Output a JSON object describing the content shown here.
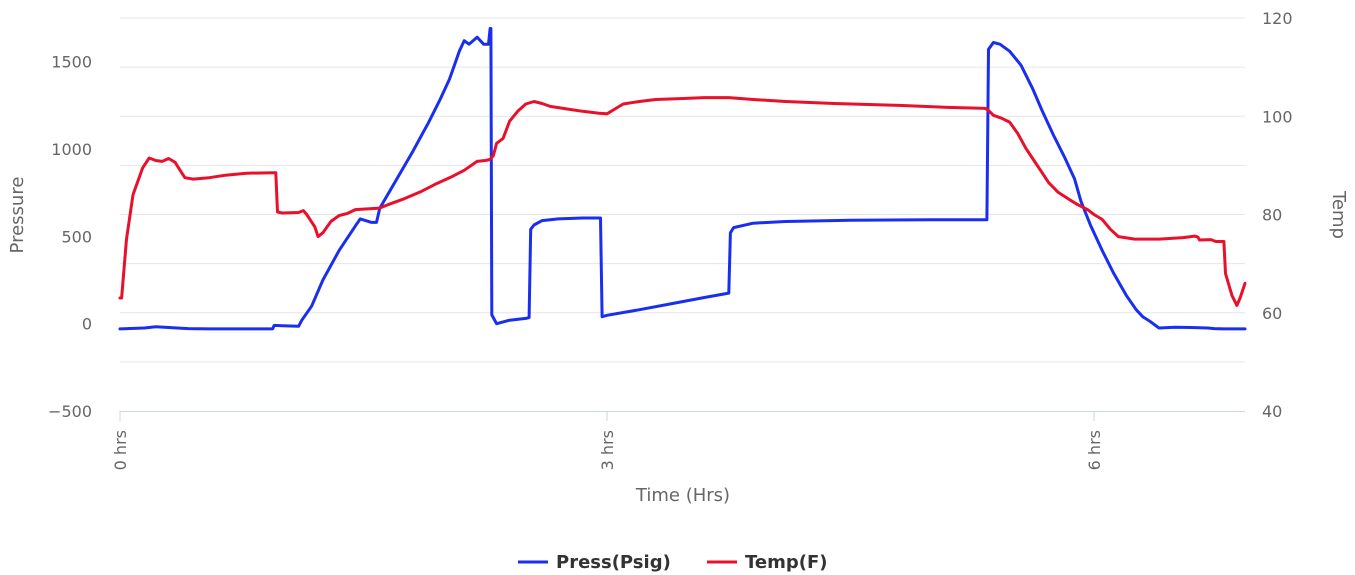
{
  "chart_data": {
    "type": "line",
    "xlabel": "Time (Hrs)",
    "ylabel_left": "Pressure",
    "ylabel_right": "Temp",
    "x_unit": "hrs",
    "x_range": [
      0,
      6.93
    ],
    "x_ticks": [
      0,
      3,
      6
    ],
    "x_tick_labels": [
      "0 hrs",
      "3 hrs",
      "6 hrs"
    ],
    "y_left_range": [
      -500,
      1750
    ],
    "y_left_ticks": [
      -500,
      0,
      500,
      1000,
      1500
    ],
    "y_left_tick_labels": [
      "−500",
      "0",
      "500",
      "1000",
      "1500"
    ],
    "y_right_range": [
      40,
      120
    ],
    "y_right_ticks": [
      40,
      60,
      80,
      100,
      120
    ],
    "y_right_tick_labels": [
      "40",
      "60",
      "80",
      "100",
      "120"
    ],
    "grid": true,
    "legend_position": "bottom-center",
    "series": [
      {
        "name": "Press(Psig)",
        "axis": "left",
        "color": "#1a2ef0",
        "points": [
          [
            0.0,
            -30
          ],
          [
            0.15,
            -25
          ],
          [
            0.22,
            -18
          ],
          [
            0.3,
            -22
          ],
          [
            0.35,
            -25
          ],
          [
            0.42,
            -28
          ],
          [
            0.55,
            -30
          ],
          [
            0.8,
            -30
          ],
          [
            0.94,
            -30
          ],
          [
            0.95,
            -10
          ],
          [
            1.0,
            -12
          ],
          [
            1.1,
            -15
          ],
          [
            1.12,
            20
          ],
          [
            1.18,
            100
          ],
          [
            1.25,
            250
          ],
          [
            1.35,
            420
          ],
          [
            1.45,
            560
          ],
          [
            1.48,
            600
          ],
          [
            1.55,
            580
          ],
          [
            1.58,
            580
          ],
          [
            1.6,
            660
          ],
          [
            1.7,
            820
          ],
          [
            1.8,
            980
          ],
          [
            1.9,
            1150
          ],
          [
            1.97,
            1280
          ],
          [
            2.03,
            1400
          ],
          [
            2.06,
            1480
          ],
          [
            2.09,
            1560
          ],
          [
            2.12,
            1620
          ],
          [
            2.15,
            1600
          ],
          [
            2.2,
            1640
          ],
          [
            2.24,
            1600
          ],
          [
            2.27,
            1600
          ],
          [
            2.28,
            1690
          ],
          [
            2.285,
            1690
          ],
          [
            2.29,
            50
          ],
          [
            2.32,
            0
          ],
          [
            2.36,
            10
          ],
          [
            2.4,
            20
          ],
          [
            2.5,
            30
          ],
          [
            2.52,
            35
          ],
          [
            2.53,
            540
          ],
          [
            2.55,
            565
          ],
          [
            2.6,
            590
          ],
          [
            2.7,
            600
          ],
          [
            2.85,
            605
          ],
          [
            2.96,
            605
          ],
          [
            2.97,
            40
          ],
          [
            3.0,
            48
          ],
          [
            3.2,
            80
          ],
          [
            3.4,
            115
          ],
          [
            3.6,
            150
          ],
          [
            3.75,
            175
          ],
          [
            3.76,
            520
          ],
          [
            3.78,
            550
          ],
          [
            3.9,
            575
          ],
          [
            4.1,
            585
          ],
          [
            4.5,
            592
          ],
          [
            5.0,
            595
          ],
          [
            5.34,
            595
          ],
          [
            5.35,
            1570
          ],
          [
            5.38,
            1610
          ],
          [
            5.42,
            1600
          ],
          [
            5.48,
            1560
          ],
          [
            5.55,
            1480
          ],
          [
            5.62,
            1350
          ],
          [
            5.68,
            1220
          ],
          [
            5.75,
            1080
          ],
          [
            5.82,
            950
          ],
          [
            5.88,
            830
          ],
          [
            5.92,
            700
          ],
          [
            5.98,
            560
          ],
          [
            6.05,
            420
          ],
          [
            6.12,
            290
          ],
          [
            6.2,
            160
          ],
          [
            6.26,
            80
          ],
          [
            6.3,
            40
          ],
          [
            6.35,
            10
          ],
          [
            6.4,
            -25
          ],
          [
            6.5,
            -20
          ],
          [
            6.6,
            -22
          ],
          [
            6.7,
            -25
          ],
          [
            6.74,
            -28
          ],
          [
            6.8,
            -30
          ],
          [
            6.93,
            -30
          ]
        ]
      },
      {
        "name": "Temp(F)",
        "axis": "right",
        "color": "#e8102a",
        "points": [
          [
            0.0,
            63
          ],
          [
            0.01,
            63
          ],
          [
            0.04,
            75
          ],
          [
            0.08,
            84
          ],
          [
            0.14,
            89.5
          ],
          [
            0.18,
            91.5
          ],
          [
            0.22,
            91
          ],
          [
            0.26,
            90.8
          ],
          [
            0.3,
            91.4
          ],
          [
            0.34,
            90.6
          ],
          [
            0.37,
            89
          ],
          [
            0.4,
            87.5
          ],
          [
            0.45,
            87.2
          ],
          [
            0.55,
            87.5
          ],
          [
            0.65,
            88.0
          ],
          [
            0.78,
            88.4
          ],
          [
            0.95,
            88.5
          ],
          [
            0.96,
            88.5
          ],
          [
            0.97,
            80.5
          ],
          [
            1.0,
            80.3
          ],
          [
            1.1,
            80.4
          ],
          [
            1.13,
            80.8
          ],
          [
            1.15,
            80
          ],
          [
            1.18,
            78.5
          ],
          [
            1.2,
            77.5
          ],
          [
            1.22,
            75.5
          ],
          [
            1.25,
            76.3
          ],
          [
            1.3,
            78.6
          ],
          [
            1.35,
            79.8
          ],
          [
            1.4,
            80.2
          ],
          [
            1.45,
            81
          ],
          [
            1.55,
            81.2
          ],
          [
            1.6,
            81.3
          ],
          [
            1.65,
            82
          ],
          [
            1.75,
            83.2
          ],
          [
            1.85,
            84.6
          ],
          [
            1.95,
            86.3
          ],
          [
            2.05,
            87.8
          ],
          [
            2.12,
            89
          ],
          [
            2.2,
            90.8
          ],
          [
            2.25,
            91
          ],
          [
            2.28,
            91.2
          ],
          [
            2.3,
            92
          ],
          [
            2.32,
            94.5
          ],
          [
            2.36,
            95.5
          ],
          [
            2.4,
            99
          ],
          [
            2.45,
            101
          ],
          [
            2.5,
            102.5
          ],
          [
            2.55,
            103
          ],
          [
            2.6,
            102.6
          ],
          [
            2.65,
            102.0
          ],
          [
            2.75,
            101.5
          ],
          [
            2.85,
            101
          ],
          [
            2.95,
            100.6
          ],
          [
            3.0,
            100.5
          ],
          [
            3.05,
            101.5
          ],
          [
            3.1,
            102.5
          ],
          [
            3.2,
            103
          ],
          [
            3.3,
            103.4
          ],
          [
            3.45,
            103.6
          ],
          [
            3.6,
            103.8
          ],
          [
            3.75,
            103.8
          ],
          [
            3.9,
            103.4
          ],
          [
            4.1,
            103.0
          ],
          [
            4.4,
            102.6
          ],
          [
            4.8,
            102.2
          ],
          [
            5.1,
            101.8
          ],
          [
            5.33,
            101.6
          ],
          [
            5.35,
            101.2
          ],
          [
            5.38,
            100.2
          ],
          [
            5.43,
            99.6
          ],
          [
            5.48,
            98.8
          ],
          [
            5.53,
            96.5
          ],
          [
            5.58,
            93.5
          ],
          [
            5.62,
            91.5
          ],
          [
            5.68,
            88.5
          ],
          [
            5.72,
            86.5
          ],
          [
            5.78,
            84.5
          ],
          [
            5.85,
            83
          ],
          [
            5.9,
            82
          ],
          [
            5.96,
            81
          ],
          [
            6.0,
            80
          ],
          [
            6.05,
            79
          ],
          [
            6.1,
            77
          ],
          [
            6.15,
            75.5
          ],
          [
            6.25,
            75
          ],
          [
            6.4,
            75
          ],
          [
            6.55,
            75.3
          ],
          [
            6.62,
            75.6
          ],
          [
            6.64,
            75.4
          ],
          [
            6.65,
            74.8
          ],
          [
            6.72,
            74.9
          ],
          [
            6.75,
            74.5
          ],
          [
            6.8,
            74.5
          ],
          [
            6.81,
            68
          ],
          [
            6.85,
            63.5
          ],
          [
            6.88,
            61.5
          ],
          [
            6.9,
            63
          ],
          [
            6.93,
            66
          ]
        ]
      }
    ]
  }
}
